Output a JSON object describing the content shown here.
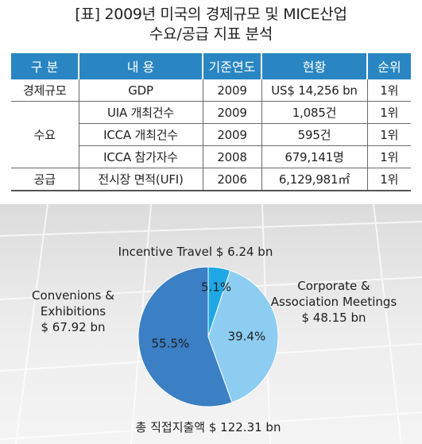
{
  "title": {
    "line1": "[표] 2009년 미국의 경제규모 및 MICE산업",
    "line2": "수요/공급 지표 분석"
  },
  "table": {
    "headers": [
      "구 분",
      "내 용",
      "기준연도",
      "현황",
      "순위"
    ],
    "rows": [
      {
        "category": "경제규모",
        "content": "GDP",
        "year": "2009",
        "status": "US$ 14,256 bn",
        "rank": "1위"
      },
      {
        "category": "수요",
        "content": "UIA 개최건수",
        "year": "2009",
        "status": "1,085건",
        "rank": "1위"
      },
      {
        "category": "",
        "content": "ICCA 개최건수",
        "year": "2009",
        "status": "595건",
        "rank": "1위"
      },
      {
        "category": "",
        "content": "ICCA 참가자수",
        "year": "2008",
        "status": "679,141명",
        "rank": "1위"
      },
      {
        "category": "공급",
        "content": "전시장 면적(UFI)",
        "year": "2006",
        "status": "6,129,981㎡",
        "rank": "1위"
      }
    ]
  },
  "colors": {
    "header_bg": "#2a86c2",
    "slice_conventions": "#3b7fc4",
    "slice_corporate": "#8dcdf2",
    "slice_incentive": "#1fa8e6",
    "panel_bg": "#ebebeb"
  },
  "chart_data": {
    "type": "pie",
    "slices": [
      {
        "label": "Incentive Travel $ 6.24 bn",
        "value": 6.24,
        "percent_label": "5.1%"
      },
      {
        "label": "Corporate & Association Meetings $ 48.15 bn",
        "value": 48.15,
        "percent_label": "39.4%"
      },
      {
        "label": "Convenions & Exhibitions $ 67.92 bn",
        "value": 67.92,
        "percent_label": "55.5%"
      }
    ],
    "label_lines": {
      "incentive": [
        "Incentive Travel $ 6.24 bn"
      ],
      "corporate": [
        "Corporate &",
        "Association Meetings",
        "$ 48.15 bn"
      ],
      "conventions": [
        "Convenions &",
        "Exhibitions",
        "$ 67.92 bn"
      ]
    },
    "total_label": "총 직접지출액 $ 122.31 bn"
  }
}
